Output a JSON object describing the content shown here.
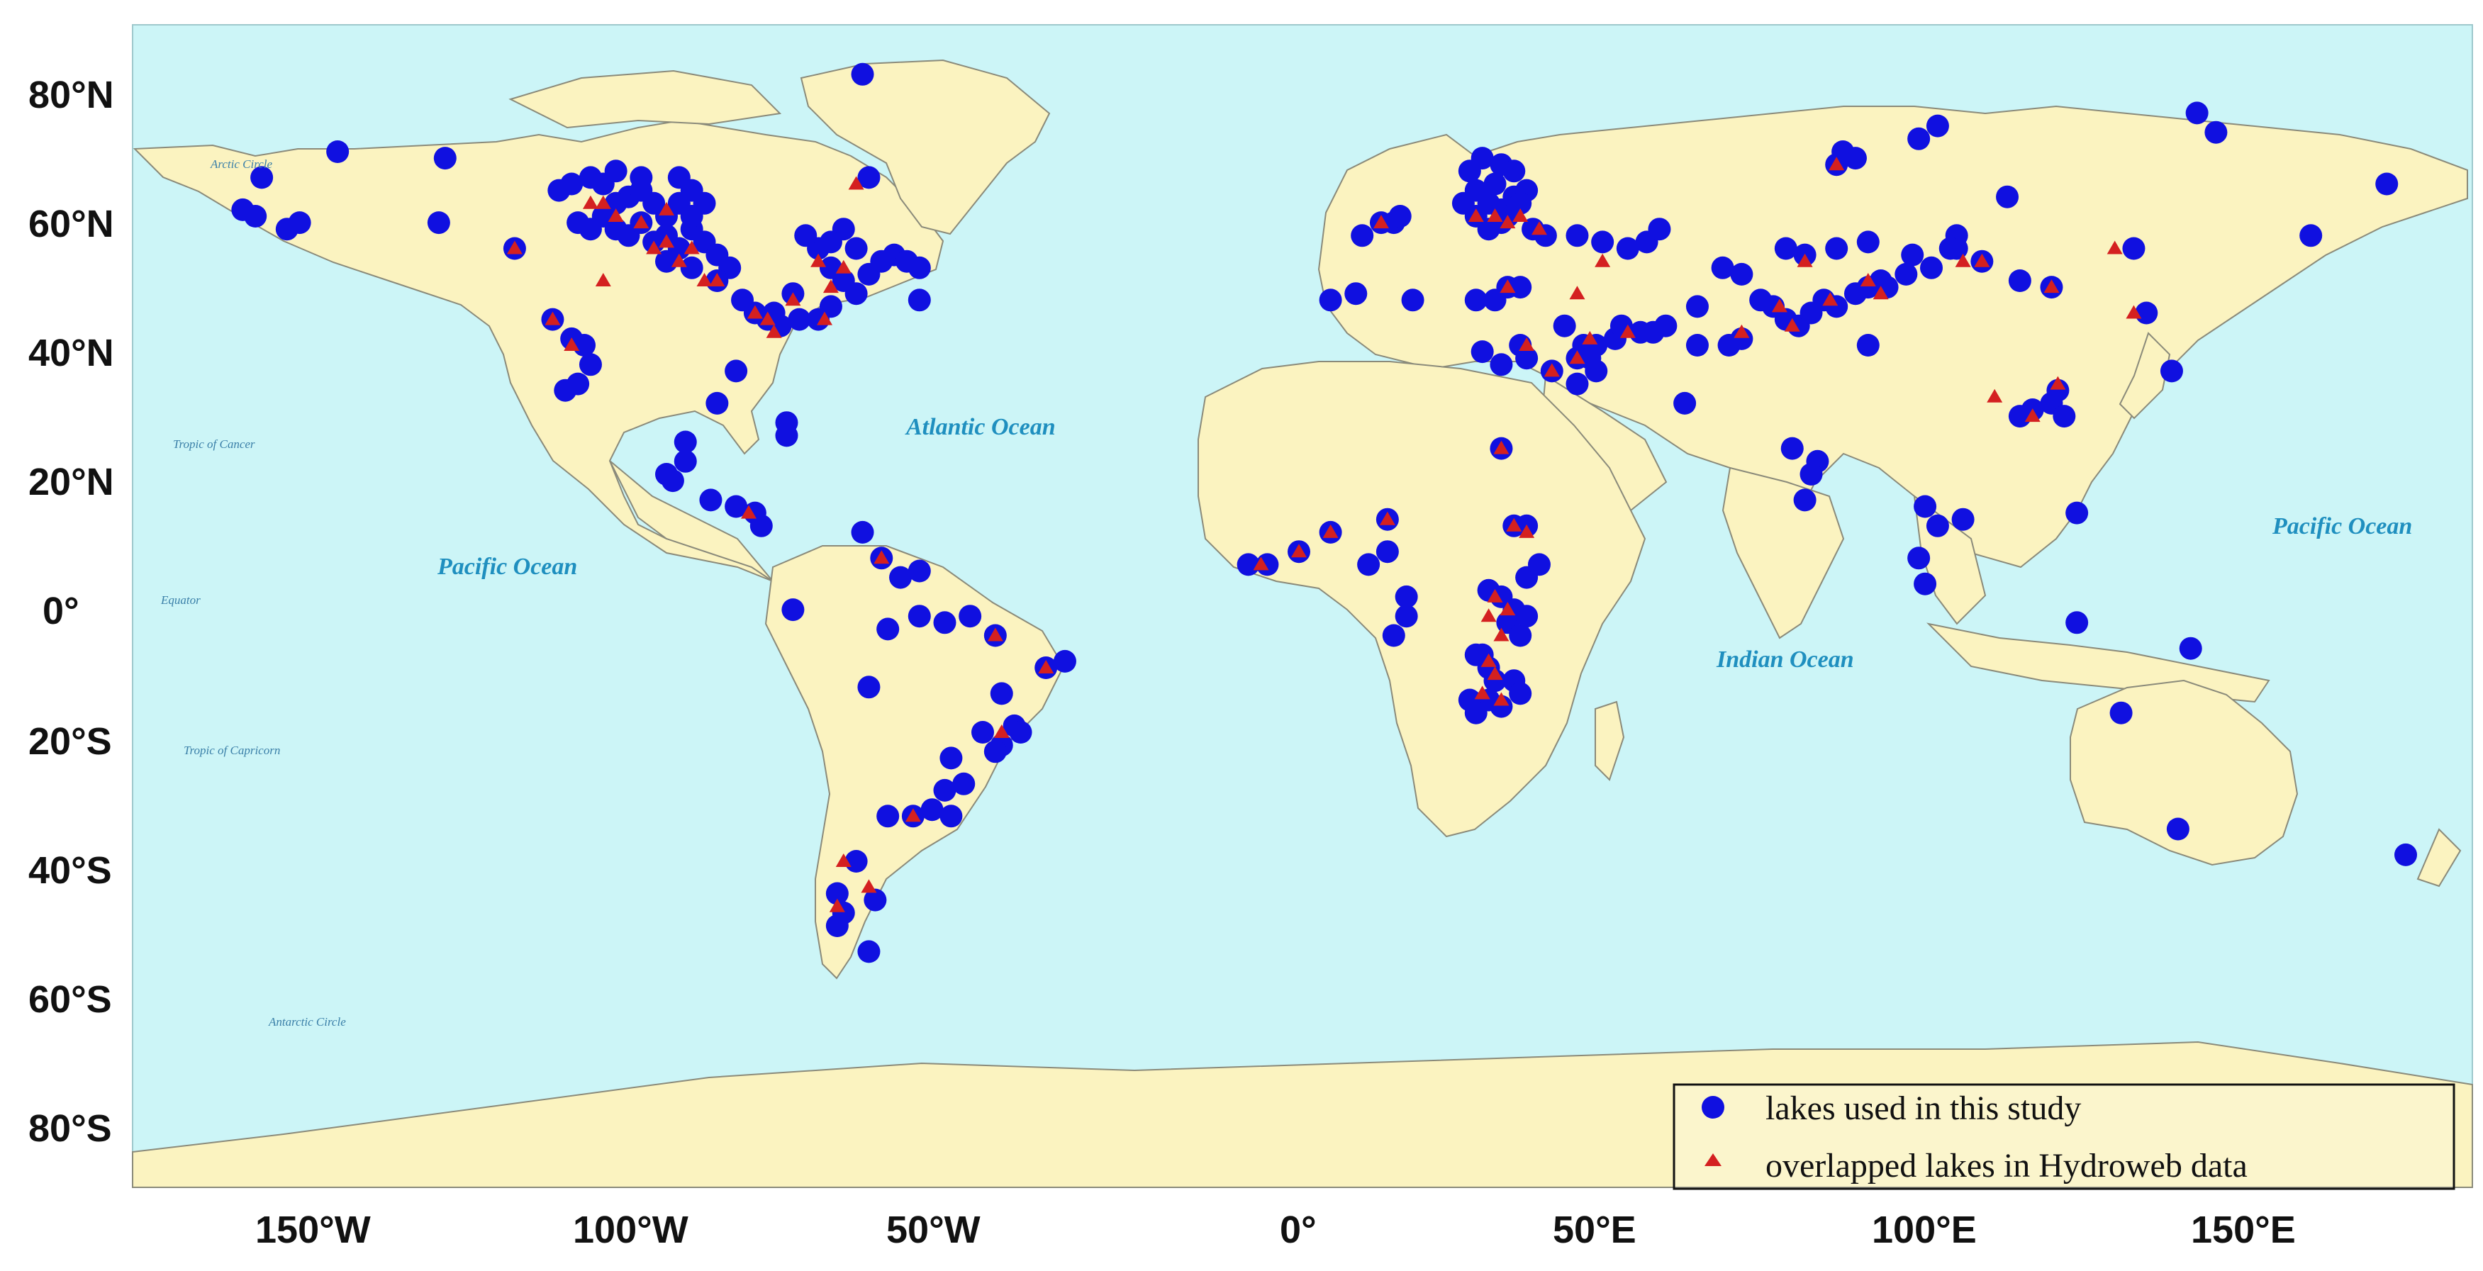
{
  "map": {
    "y_axis_labels": [
      "80°N",
      "60°N",
      "40°N",
      "20°N",
      "0°",
      "20°S",
      "40°S",
      "60°S",
      "80°S"
    ],
    "x_axis_labels": [
      "150°W",
      "100°W",
      "50°W",
      "0°",
      "50°E",
      "100°E",
      "150°E"
    ],
    "ocean_labels": {
      "atlantic": "Atlantic Ocean",
      "pacific_west": "Pacific Ocean",
      "pacific_east": "Pacific Ocean",
      "indian": "Indian Ocean"
    },
    "reference_lines": {
      "arctic": "Arctic Circle",
      "cancer": "Tropic of Cancer",
      "equator": "Equator",
      "capricorn": "Tropic of Capricorn",
      "antarctic": "Antarctic Circle"
    },
    "legend": {
      "lakes_used": "lakes used in this study",
      "overlapped": "overlapped lakes in Hydroweb data"
    },
    "colors": {
      "ocean": "#ccf5f7",
      "land": "#fbf3c0",
      "lake_dot": "#1010e0",
      "hydroweb_triangle": "#d42020"
    },
    "lakes": [
      [
        -164,
        66
      ],
      [
        -167,
        61
      ],
      [
        -165,
        60
      ],
      [
        -160,
        58
      ],
      [
        -158,
        59
      ],
      [
        -152,
        70
      ],
      [
        -135,
        69
      ],
      [
        -136,
        59
      ],
      [
        -124,
        55
      ],
      [
        -117,
        64
      ],
      [
        -115,
        65
      ],
      [
        -112,
        66
      ],
      [
        -110,
        65
      ],
      [
        -108,
        67
      ],
      [
        -106,
        63
      ],
      [
        -104,
        64
      ],
      [
        -102,
        62
      ],
      [
        -100,
        60
      ],
      [
        -98,
        62
      ],
      [
        -96,
        64
      ],
      [
        -94,
        62
      ],
      [
        -110,
        60
      ],
      [
        -108,
        58
      ],
      [
        -106,
        57
      ],
      [
        -104,
        59
      ],
      [
        -102,
        56
      ],
      [
        -100,
        57
      ],
      [
        -98,
        55
      ],
      [
        -96,
        58
      ],
      [
        -94,
        56
      ],
      [
        -92,
        54
      ],
      [
        -90,
        52
      ],
      [
        -100,
        53
      ],
      [
        -96,
        52
      ],
      [
        -92,
        50
      ],
      [
        -114,
        59
      ],
      [
        -112,
        58
      ],
      [
        -108,
        62
      ],
      [
        -104,
        66
      ],
      [
        -98,
        66
      ],
      [
        -96,
        60
      ],
      [
        -118,
        44
      ],
      [
        -115,
        41
      ],
      [
        -113,
        40
      ],
      [
        -112,
        37
      ],
      [
        -114,
        34
      ],
      [
        -116,
        33
      ],
      [
        -88,
        47
      ],
      [
        -86,
        45
      ],
      [
        -84,
        44
      ],
      [
        -82,
        43
      ],
      [
        -79,
        44
      ],
      [
        -76,
        44
      ],
      [
        -74,
        46
      ],
      [
        -70,
        48
      ],
      [
        -68,
        51
      ],
      [
        -66,
        53
      ],
      [
        -64,
        54
      ],
      [
        -62,
        53
      ],
      [
        -60,
        52
      ],
      [
        -72,
        50
      ],
      [
        -74,
        52
      ],
      [
        -76,
        55
      ],
      [
        -78,
        57
      ],
      [
        -70,
        55
      ],
      [
        -72,
        58
      ],
      [
        -74,
        56
      ],
      [
        -68,
        66
      ],
      [
        -60,
        47
      ],
      [
        -80,
        48
      ],
      [
        -83,
        45
      ],
      [
        -89,
        36
      ],
      [
        -92,
        31
      ],
      [
        -81,
        28
      ],
      [
        -81,
        26
      ],
      [
        -100,
        20
      ],
      [
        -99,
        19
      ],
      [
        -97,
        22
      ],
      [
        -97,
        25
      ],
      [
        -93,
        16
      ],
      [
        -89,
        15
      ],
      [
        -86,
        14
      ],
      [
        -85,
        12
      ],
      [
        -80,
        -1
      ],
      [
        -69,
        82
      ],
      [
        -69,
        11
      ],
      [
        -66,
        7
      ],
      [
        -63,
        4
      ],
      [
        -60,
        5
      ],
      [
        -65,
        -4
      ],
      [
        -60,
        -2
      ],
      [
        -56,
        -3
      ],
      [
        -52,
        -2
      ],
      [
        -48,
        -5
      ],
      [
        -40,
        -10
      ],
      [
        -37,
        -9
      ],
      [
        -47,
        -14
      ],
      [
        -45,
        -19
      ],
      [
        -47,
        -22
      ],
      [
        -44,
        -20
      ],
      [
        -50,
        -20
      ],
      [
        -48,
        -23
      ],
      [
        -55,
        -24
      ],
      [
        -53,
        -28
      ],
      [
        -56,
        -29
      ],
      [
        -58,
        -32
      ],
      [
        -55,
        -33
      ],
      [
        -61,
        -33
      ],
      [
        -65,
        -33
      ],
      [
        -68,
        -13
      ],
      [
        -70,
        -40
      ],
      [
        -73,
        -45
      ],
      [
        -72,
        -48
      ],
      [
        -73,
        -50
      ],
      [
        -68,
        -54
      ],
      [
        -67,
        -46
      ],
      [
        -8,
        6
      ],
      [
        -5,
        6
      ],
      [
        0,
        8
      ],
      [
        5,
        11
      ],
      [
        14,
        13
      ],
      [
        14,
        8
      ],
      [
        11,
        6
      ],
      [
        17,
        1
      ],
      [
        17,
        -2
      ],
      [
        15,
        -5
      ],
      [
        32,
        24
      ],
      [
        30,
        2
      ],
      [
        32,
        1
      ],
      [
        34,
        -1
      ],
      [
        33,
        -3
      ],
      [
        35,
        -5
      ],
      [
        36,
        -2
      ],
      [
        36,
        4
      ],
      [
        38,
        6
      ],
      [
        34,
        12
      ],
      [
        36,
        12
      ],
      [
        29,
        -8
      ],
      [
        30,
        -10
      ],
      [
        31,
        -12
      ],
      [
        30,
        -15
      ],
      [
        28,
        -17
      ],
      [
        32,
        -16
      ],
      [
        34,
        -12
      ],
      [
        35,
        -14
      ],
      [
        27,
        -15
      ],
      [
        28,
        -8
      ],
      [
        9,
        48
      ],
      [
        5,
        47
      ],
      [
        10,
        57
      ],
      [
        13,
        59
      ],
      [
        15,
        59
      ],
      [
        16,
        60
      ],
      [
        18,
        47
      ],
      [
        26,
        62
      ],
      [
        28,
        64
      ],
      [
        30,
        62
      ],
      [
        32,
        61
      ],
      [
        34,
        63
      ],
      [
        36,
        64
      ],
      [
        27,
        67
      ],
      [
        29,
        69
      ],
      [
        32,
        68
      ],
      [
        34,
        67
      ],
      [
        31,
        65
      ],
      [
        33,
        60
      ],
      [
        35,
        62
      ],
      [
        28,
        60
      ],
      [
        30,
        58
      ],
      [
        32,
        59
      ],
      [
        39,
        57
      ],
      [
        37,
        58
      ],
      [
        44,
        57
      ],
      [
        48,
        56
      ],
      [
        52,
        55
      ],
      [
        55,
        56
      ],
      [
        57,
        58
      ],
      [
        54,
        42
      ],
      [
        50,
        41
      ],
      [
        47,
        40
      ],
      [
        45,
        40
      ],
      [
        44,
        38
      ],
      [
        46,
        38
      ],
      [
        40,
        36
      ],
      [
        36,
        38
      ],
      [
        35,
        40
      ],
      [
        32,
        37
      ],
      [
        29,
        39
      ],
      [
        28,
        47
      ],
      [
        31,
        47
      ],
      [
        33,
        49
      ],
      [
        35,
        49
      ],
      [
        42,
        43
      ],
      [
        44,
        34
      ],
      [
        47,
        36
      ],
      [
        51,
        43
      ],
      [
        56,
        42
      ],
      [
        58,
        43
      ],
      [
        63,
        46
      ],
      [
        63,
        40
      ],
      [
        68,
        40
      ],
      [
        70,
        41
      ],
      [
        73,
        47
      ],
      [
        75,
        46
      ],
      [
        77,
        44
      ],
      [
        79,
        43
      ],
      [
        81,
        45
      ],
      [
        83,
        47
      ],
      [
        85,
        46
      ],
      [
        88,
        48
      ],
      [
        90,
        49
      ],
      [
        92,
        50
      ],
      [
        96,
        51
      ],
      [
        100,
        52
      ],
      [
        104,
        55
      ],
      [
        108,
        53
      ],
      [
        114,
        50
      ],
      [
        119,
        49
      ],
      [
        97,
        54
      ],
      [
        90,
        56
      ],
      [
        85,
        55
      ],
      [
        80,
        54
      ],
      [
        77,
        55
      ],
      [
        70,
        51
      ],
      [
        61,
        31
      ],
      [
        67,
        52
      ],
      [
        78,
        24
      ],
      [
        82,
        22
      ],
      [
        81,
        20
      ],
      [
        80,
        16
      ],
      [
        90,
        40
      ],
      [
        99,
        15
      ],
      [
        101,
        12
      ],
      [
        98,
        7
      ],
      [
        99,
        3
      ],
      [
        105,
        13
      ],
      [
        112,
        63
      ],
      [
        116,
        30
      ],
      [
        119,
        31
      ],
      [
        120,
        33
      ],
      [
        121,
        29
      ],
      [
        123,
        14
      ],
      [
        123,
        -3
      ],
      [
        114,
        29
      ],
      [
        86,
        70
      ],
      [
        88,
        69
      ],
      [
        85,
        68
      ],
      [
        98,
        72
      ],
      [
        101,
        74
      ],
      [
        104,
        57
      ],
      [
        132,
        55
      ],
      [
        134,
        45
      ],
      [
        138,
        36
      ],
      [
        141,
        -7
      ],
      [
        142,
        76
      ],
      [
        145,
        73
      ],
      [
        160,
        57
      ],
      [
        172,
        65
      ],
      [
        175,
        -39
      ],
      [
        130,
        -17
      ],
      [
        139,
        -35
      ],
      [
        103,
        55
      ],
      [
        93,
        49
      ]
    ],
    "hydroweb": [
      [
        -124,
        55
      ],
      [
        -112,
        62
      ],
      [
        -108,
        60
      ],
      [
        -104,
        59
      ],
      [
        -100,
        61
      ],
      [
        -102,
        55
      ],
      [
        -96,
        55
      ],
      [
        -92,
        50
      ],
      [
        -98,
        53
      ],
      [
        -110,
        50
      ],
      [
        -118,
        44
      ],
      [
        -115,
        40
      ],
      [
        -86,
        45
      ],
      [
        -84,
        44
      ],
      [
        -80,
        47
      ],
      [
        -76,
        53
      ],
      [
        -74,
        49
      ],
      [
        -70,
        65
      ],
      [
        -72,
        52
      ],
      [
        -87,
        14
      ],
      [
        -75,
        44
      ],
      [
        -83,
        42
      ],
      [
        -48,
        -5
      ],
      [
        -40,
        -10
      ],
      [
        -47,
        -20
      ],
      [
        -61,
        -33
      ],
      [
        -72,
        -40
      ],
      [
        -73,
        -47
      ],
      [
        -68,
        -44
      ],
      [
        -66,
        7
      ],
      [
        -6,
        6
      ],
      [
        0,
        8
      ],
      [
        5,
        11
      ],
      [
        14,
        13
      ],
      [
        32,
        24
      ],
      [
        31,
        1
      ],
      [
        33,
        -1
      ],
      [
        30,
        -2
      ],
      [
        32,
        -5
      ],
      [
        30,
        -9
      ],
      [
        31,
        -11
      ],
      [
        29,
        -14
      ],
      [
        32,
        -15
      ],
      [
        34,
        12
      ],
      [
        36,
        11
      ],
      [
        28,
        60
      ],
      [
        31,
        60
      ],
      [
        35,
        60
      ],
      [
        33,
        59
      ],
      [
        38,
        58
      ],
      [
        13,
        59
      ],
      [
        33,
        49
      ],
      [
        44,
        48
      ],
      [
        48,
        53
      ],
      [
        46,
        41
      ],
      [
        44,
        38
      ],
      [
        40,
        36
      ],
      [
        36,
        40
      ],
      [
        52,
        42
      ],
      [
        70,
        42
      ],
      [
        76,
        46
      ],
      [
        78,
        43
      ],
      [
        84,
        47
      ],
      [
        80,
        53
      ],
      [
        92,
        48
      ],
      [
        90,
        50
      ],
      [
        105,
        53
      ],
      [
        108,
        53
      ],
      [
        110,
        32
      ],
      [
        119,
        49
      ],
      [
        120,
        34
      ],
      [
        116,
        29
      ],
      [
        129,
        55
      ],
      [
        132,
        45
      ],
      [
        85,
        68
      ],
      [
        -110,
        62
      ],
      [
        -94,
        50
      ],
      [
        -100,
        56
      ]
    ]
  }
}
